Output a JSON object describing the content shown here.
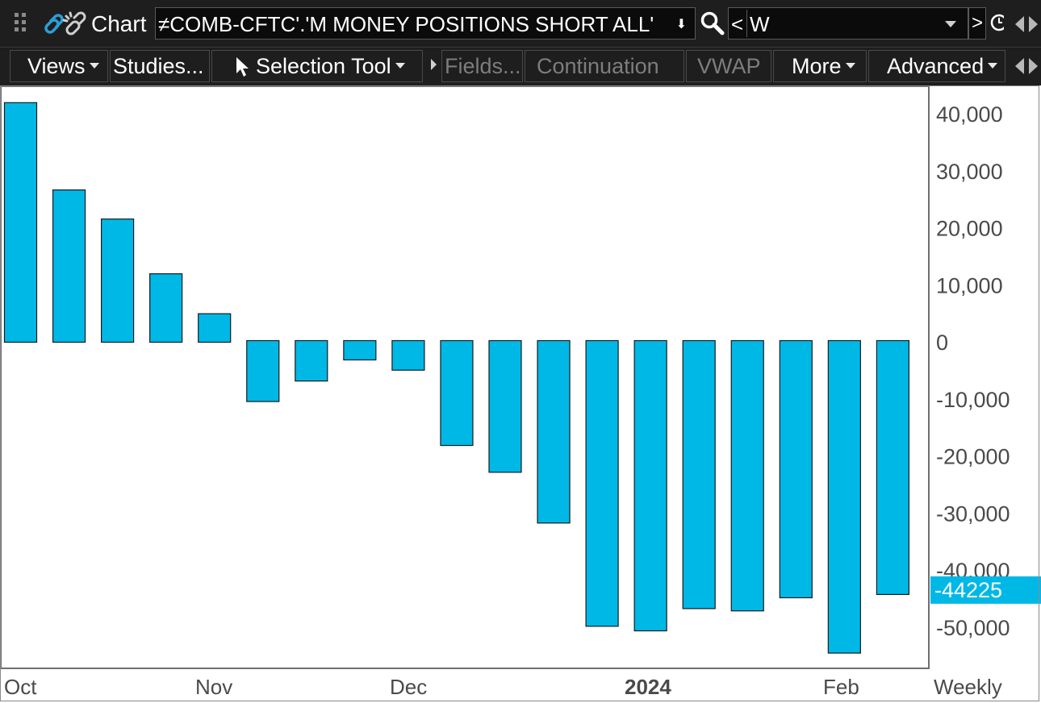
{
  "title_bar": {
    "window_label": "Chart",
    "symbol": "≠COMB-CFTC'.'M MONEY POSITIONS SHORT ALL'",
    "aggregation_prefix": "<",
    "aggregation": "W",
    "nav_next": ">",
    "icons": [
      "grip-icon",
      "link-icon",
      "search-icon",
      "clock-icon",
      "scroll-left-icon",
      "scroll-right-icon"
    ]
  },
  "toolbar": {
    "views": "Views",
    "studies": "Studies...",
    "selection_tool": "Selection Tool",
    "fields": "Fields...",
    "continuation": "Continuation",
    "vwap": "VWAP",
    "more": "More",
    "advanced": "Advanced"
  },
  "colors": {
    "bar_fill": "#00b8e6",
    "bar_stroke": "#1a1a1a",
    "price_label_bg": "#00b8e6",
    "axis_text": "#4a4a4a",
    "toolbar_bg": "#1e1e1e"
  },
  "chart_data": {
    "type": "bar",
    "series": [
      {
        "values": [
          42000,
          26700,
          21600,
          12000,
          5000,
          -10400,
          -6800,
          -3100,
          -4900,
          -18100,
          -22800,
          -31700,
          -49800,
          -50600,
          -46700,
          -47100,
          -44800,
          -54500,
          -44225
        ]
      }
    ],
    "ylim": [
      -57000,
      45000
    ],
    "y_ticks": [
      40000,
      30000,
      20000,
      10000,
      0,
      -10000,
      -20000,
      -30000,
      -40000,
      -50000
    ],
    "y_tick_labels": [
      "40,000",
      "30,000",
      "20,000",
      "10,000",
      "0",
      "-10,000",
      "-20,000",
      "-30,000",
      "-40,000",
      "-50,000"
    ],
    "x_labels": [
      {
        "text": "Oct",
        "bold": false
      },
      {
        "text": "Nov",
        "bold": false
      },
      {
        "text": "Dec",
        "bold": false
      },
      {
        "text": "2024",
        "bold": true
      },
      {
        "text": "Feb",
        "bold": false
      }
    ],
    "period_label": "Weekly",
    "last_value_label": "-44225",
    "grid": false
  }
}
